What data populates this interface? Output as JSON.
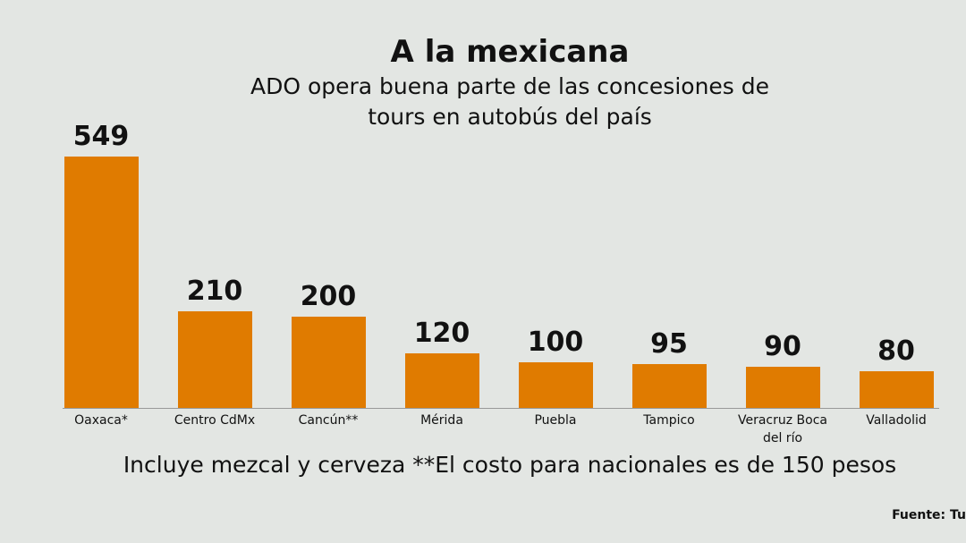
{
  "chart_data": {
    "type": "bar",
    "title": "A la mexicana",
    "subtitle": "ADO opera buena parte de las concesiones de tours en autobús del país",
    "categories": [
      "Oaxaca*",
      "Centro CdMx",
      "Cancún**",
      "Mérida",
      "Puebla",
      "Tampico",
      "Veracruz Boca del río",
      "Valladolid"
    ],
    "values": [
      549,
      210,
      200,
      120,
      100,
      95,
      90,
      80
    ],
    "color": "#e07b00",
    "note": "Incluye mezcal y cerveza **El costo para nacionales es de 150 pesos",
    "source": "Fuente: Tu"
  }
}
